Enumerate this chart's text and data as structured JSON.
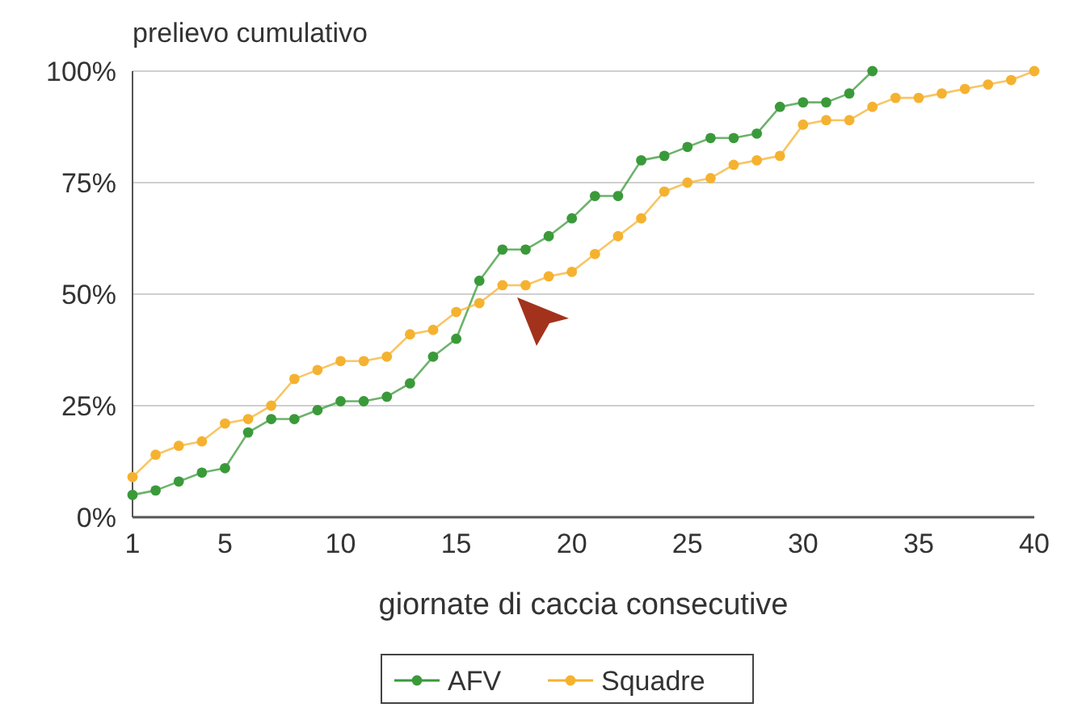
{
  "chart_data": {
    "type": "line",
    "ylabel": "prelievo cumulativo",
    "xlabel": "giornate di caccia consecutive",
    "xlim": [
      1,
      40
    ],
    "xticks": [
      1,
      5,
      10,
      15,
      20,
      25,
      30,
      35,
      40
    ],
    "ylim": [
      0,
      100
    ],
    "yticks": [
      {
        "value": 0,
        "label": "0%"
      },
      {
        "value": 25,
        "label": "25%"
      },
      {
        "value": 50,
        "label": "50%"
      },
      {
        "value": 75,
        "label": "75%"
      },
      {
        "value": 100,
        "label": "100%"
      }
    ],
    "grid": "y",
    "legend": "bottom",
    "marker": "circle",
    "line_style": "solid",
    "series": [
      {
        "name": "AFV",
        "color": "#3a9a3a",
        "x": [
          1,
          2,
          3,
          4,
          5,
          6,
          7,
          8,
          9,
          10,
          11,
          12,
          13,
          14,
          15,
          16,
          17,
          18,
          19,
          20,
          21,
          22,
          23,
          24,
          25,
          26,
          27,
          28,
          29,
          30,
          31,
          32,
          33
        ],
        "values": [
          5,
          6,
          8,
          10,
          11,
          19,
          22,
          22,
          24,
          26,
          26,
          27,
          30,
          36,
          40,
          53,
          60,
          60,
          63,
          67,
          72,
          72,
          80,
          81,
          83,
          85,
          85,
          86,
          92,
          93,
          93,
          95,
          100
        ]
      },
      {
        "name": "Squadre",
        "color": "#f5b230",
        "x": [
          1,
          2,
          3,
          4,
          5,
          6,
          7,
          8,
          9,
          10,
          11,
          12,
          13,
          14,
          15,
          16,
          17,
          18,
          19,
          20,
          21,
          22,
          23,
          24,
          25,
          26,
          27,
          28,
          29,
          30,
          31,
          32,
          33,
          34,
          35,
          36,
          37,
          38,
          39,
          40
        ],
        "values": [
          9,
          14,
          16,
          17,
          21,
          22,
          25,
          31,
          33,
          35,
          35,
          36,
          41,
          42,
          46,
          48,
          52,
          52,
          54,
          55,
          59,
          63,
          67,
          73,
          75,
          76,
          79,
          80,
          81,
          88,
          89,
          89,
          92,
          94,
          94,
          95,
          96,
          97,
          98,
          100
        ]
      }
    ]
  }
}
